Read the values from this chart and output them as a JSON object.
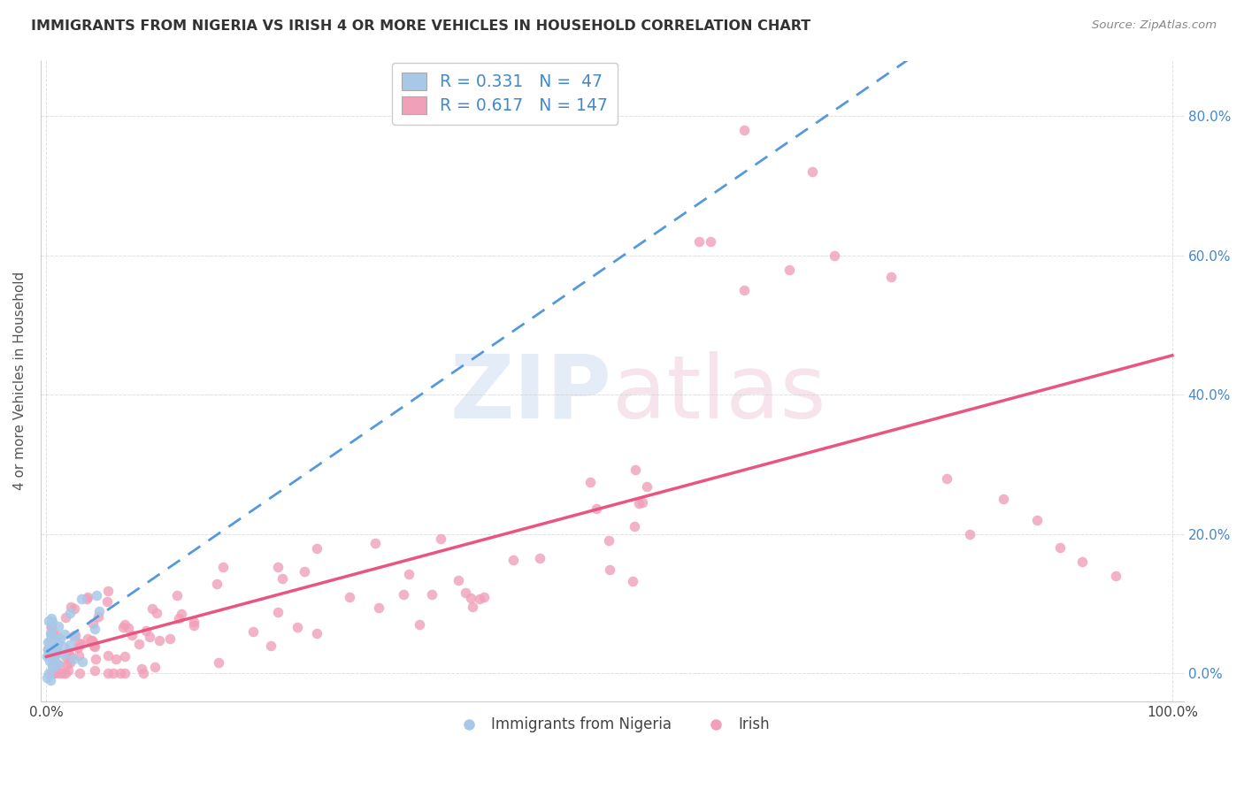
{
  "title": "IMMIGRANTS FROM NIGERIA VS IRISH 4 OR MORE VEHICLES IN HOUSEHOLD CORRELATION CHART",
  "source": "Source: ZipAtlas.com",
  "ylabel": "4 or more Vehicles in Household",
  "watermark": "ZIPatlas",
  "blue_color": "#a8c8e8",
  "pink_color": "#f0a0b8",
  "blue_line_color": "#5599dd",
  "pink_line_color": "#e85580",
  "blue_fill_color": "#a8c8e8",
  "pink_fill_color": "#f0a0b8",
  "legend_text_color": "#4488cc",
  "right_tick_color": "#4488cc",
  "grid_color": "#cccccc",
  "title_color": "#333333",
  "source_color": "#888888",
  "ylabel_color": "#555555",
  "figsize": [
    14.06,
    8.92
  ],
  "dpi": 100,
  "xlim": [
    -0.5,
    101
  ],
  "ylim": [
    -4,
    88
  ]
}
